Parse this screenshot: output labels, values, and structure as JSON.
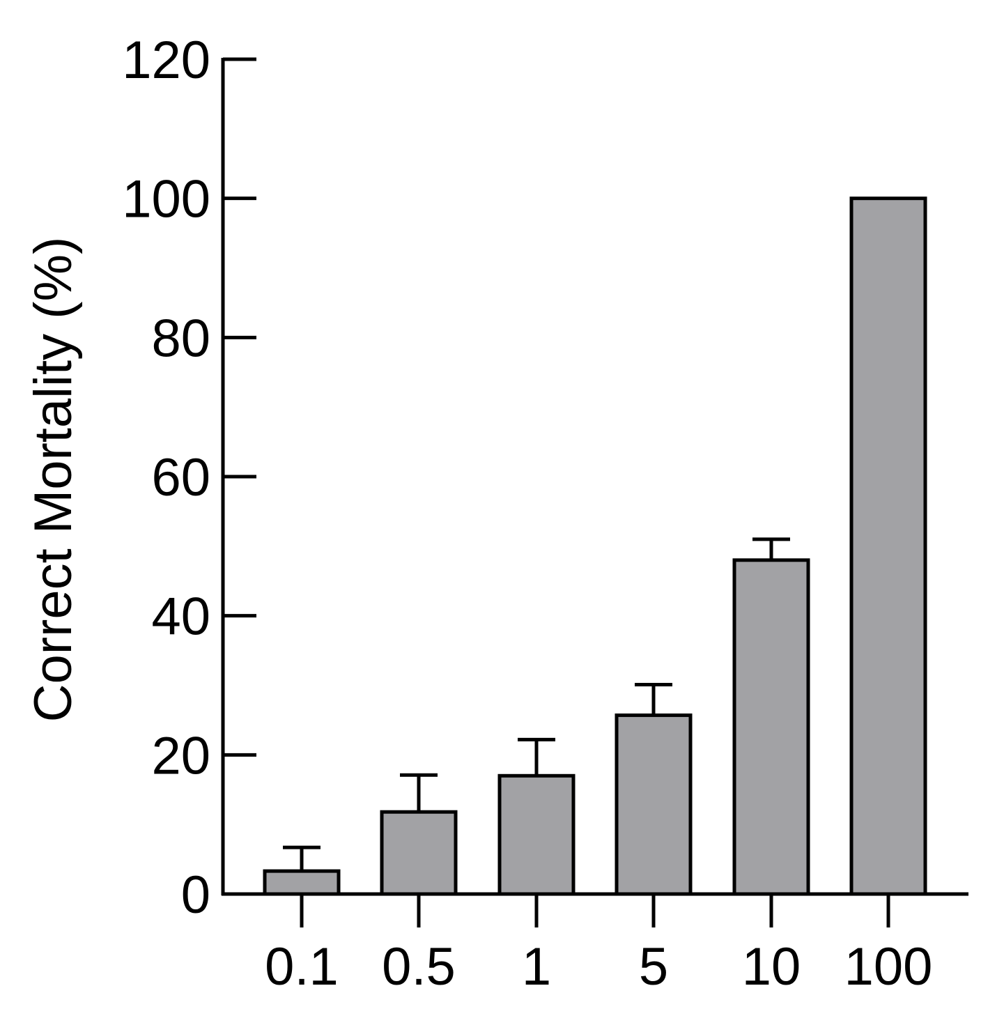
{
  "chart_data": {
    "type": "bar",
    "title": "",
    "xlabel": "",
    "ylabel": "Correct Mortality (%)",
    "categories": [
      "0.1",
      "0.5",
      "1",
      "5",
      "10",
      "100"
    ],
    "values": [
      3.3,
      11.8,
      17.0,
      25.7,
      48.0,
      100.0
    ],
    "errors_upper": [
      3.4,
      5.3,
      5.2,
      4.4,
      3.0,
      0.0
    ],
    "ylim": [
      0,
      120
    ],
    "yticks": [
      0,
      20,
      40,
      60,
      80,
      100,
      120
    ],
    "ytick_labels": [
      "0",
      "20",
      "40",
      "60",
      "80",
      "100",
      "120"
    ],
    "grid": false,
    "legend": "none",
    "bar_color": "#a2a2a5",
    "edge_color": "#000000"
  }
}
